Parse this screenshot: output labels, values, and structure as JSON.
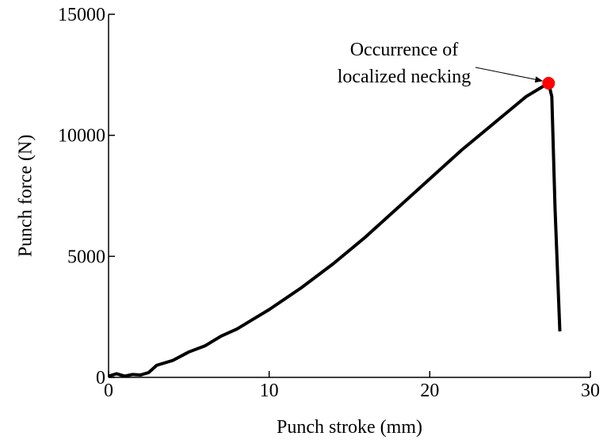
{
  "chart_data": {
    "type": "line",
    "x_label": "Punch stroke (mm)",
    "y_label": "Punch force (N)",
    "x": [
      0,
      0.5,
      1,
      1.5,
      2,
      2.5,
      3,
      4,
      5,
      6,
      7,
      8,
      9,
      10,
      12,
      14,
      16,
      18,
      20,
      22,
      24,
      26,
      27,
      27.4,
      27.6,
      27.8,
      28.1
    ],
    "series": [
      {
        "color": "#000000",
        "values": [
          50,
          150,
          50,
          120,
          100,
          200,
          500,
          700,
          1050,
          1300,
          1700,
          2000,
          2400,
          2800,
          3700,
          4700,
          5800,
          7000,
          8200,
          9400,
          10500,
          11600,
          12000,
          12150,
          11600,
          7000,
          1900
        ]
      }
    ],
    "xlim": [
      0,
      30
    ],
    "xticks": [
      0,
      10,
      20,
      30
    ],
    "ylim": [
      0,
      15000
    ],
    "yticks": [
      0,
      5000,
      10000,
      15000
    ],
    "annotation": {
      "lines": [
        "Occurrence of",
        "localized necking"
      ],
      "x": 27.4,
      "y": 12150,
      "color": "#ff0000"
    }
  }
}
